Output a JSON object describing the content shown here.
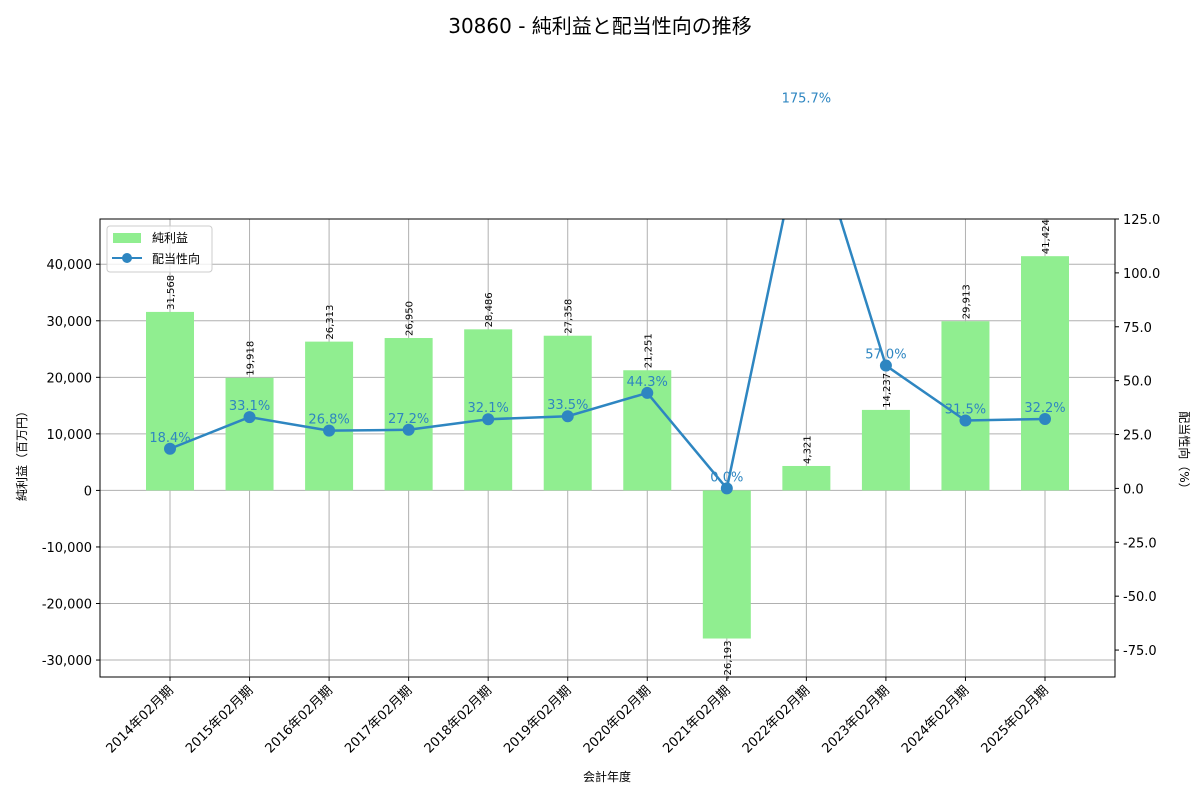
{
  "chart_data": {
    "type": "bar+line",
    "title": "30860 - 純利益と配当性向の推移",
    "xlabel": "会計年度",
    "ylabel_left": "純利益（百万円）",
    "ylabel_right": "配当性向（%）",
    "categories": [
      "2014年02月期",
      "2015年02月期",
      "2016年02月期",
      "2017年02月期",
      "2018年02月期",
      "2019年02月期",
      "2020年02月期",
      "2021年02月期",
      "2022年02月期",
      "2023年02月期",
      "2024年02月期",
      "2025年02月期"
    ],
    "series": [
      {
        "name": "純利益",
        "type": "bar",
        "axis": "left",
        "color": "#90ee90",
        "values": [
          31568,
          19918,
          26313,
          26950,
          28486,
          27358,
          21251,
          -26193,
          4321,
          14237,
          29913,
          41424
        ],
        "labels": [
          "31,568",
          "19,918",
          "26,313",
          "26,950",
          "28,486",
          "27,358",
          "21,251",
          "-26,193",
          "4,321",
          "14,237",
          "29,913",
          "41,424"
        ]
      },
      {
        "name": "配当性向",
        "type": "line",
        "axis": "right",
        "color": "#2e86c1",
        "values": [
          18.4,
          33.1,
          26.8,
          27.2,
          32.1,
          33.5,
          44.3,
          0.0,
          175.7,
          57.0,
          31.5,
          32.2
        ],
        "labels": [
          "18.4%",
          "33.1%",
          "26.8%",
          "27.2%",
          "32.1%",
          "33.5%",
          "44.3%",
          "0.0%",
          "175.7%",
          "57.0%",
          "31.5%",
          "32.2%"
        ]
      }
    ],
    "ylim_left": [
      -33000,
      48000
    ],
    "ylim_right": [
      -87.5,
      125.0
    ],
    "yticks_left": [
      "40,000",
      "30,000",
      "20,000",
      "10,000",
      "0",
      "-10,000",
      "-20,000",
      "-30,000"
    ],
    "yticks_left_values": [
      40000,
      30000,
      20000,
      10000,
      0,
      -10000,
      -20000,
      -30000
    ],
    "yticks_right": [
      "125.0",
      "100.0",
      "75.0",
      "50.0",
      "25.0",
      "0.0",
      "-25.0",
      "-50.0",
      "-75.0"
    ],
    "yticks_right_values": [
      125,
      100,
      75,
      50,
      25,
      0,
      -25,
      -50,
      -75
    ],
    "grid": true,
    "legend": {
      "position": "upper left",
      "entries": [
        "純利益",
        "配当性向"
      ]
    }
  }
}
